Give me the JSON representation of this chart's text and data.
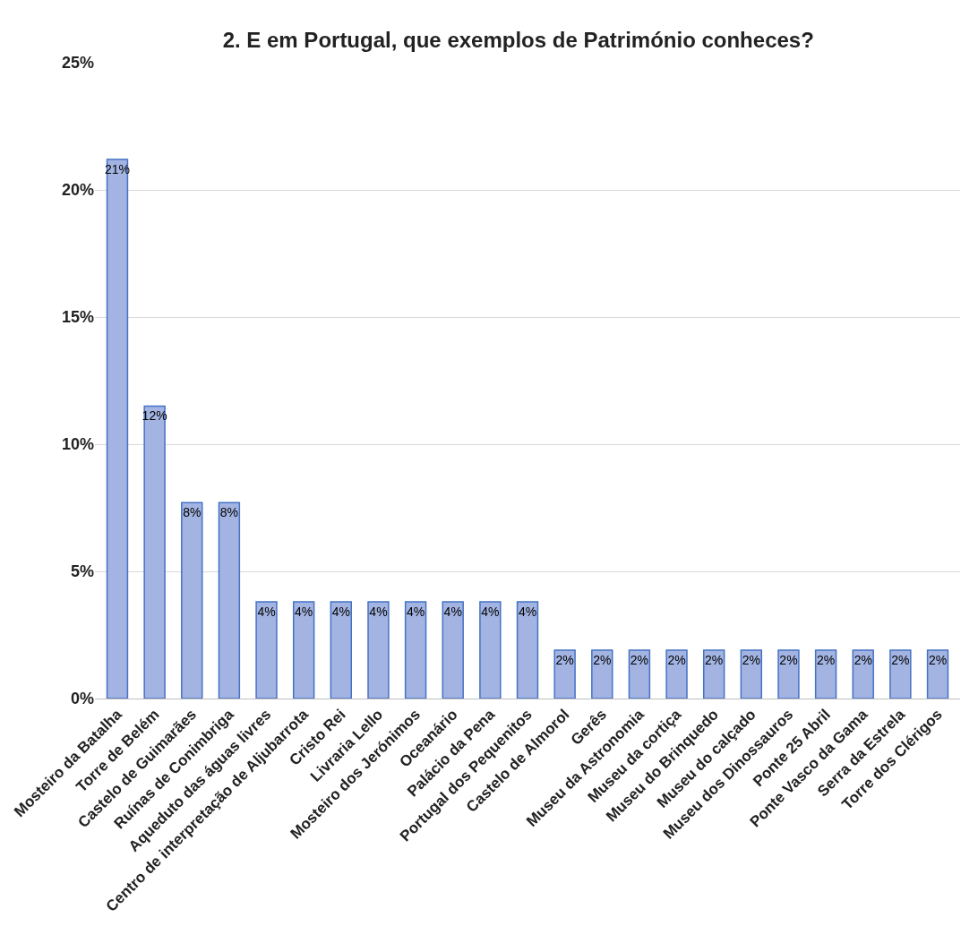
{
  "chart_data": {
    "type": "bar",
    "title": "2. E em Portugal, que exemplos de Património conheces?",
    "categories": [
      "Mosteiro da Batalha",
      "Torre de Belém",
      "Castelo de Guimarães",
      "Ruínas de Conimbriga",
      "Aqueduto das águas livres",
      "Centro de interpretação de Aljubarrota",
      "Cristo Rei",
      "Livraria Lello",
      "Mosteiro dos Jerónimos",
      "Oceanário",
      "Palácio da Pena",
      "Portugal dos Pequenitos",
      "Castelo de Almorol",
      "Gerês",
      "Museu da Astronomia",
      "Museu da cortiça",
      "Museu do Brinquedo",
      "Museu do calçado",
      "Museu dos Dinossauros",
      "Ponte 25 Abril",
      "Ponte Vasco da Gama",
      "Serra da Estrela",
      "Torre dos Clérigos"
    ],
    "values": [
      21.2,
      11.5,
      7.7,
      7.7,
      3.8,
      3.8,
      3.8,
      3.8,
      3.8,
      3.8,
      3.8,
      3.8,
      1.9,
      1.9,
      1.9,
      1.9,
      1.9,
      1.9,
      1.9,
      1.9,
      1.9,
      1.9,
      1.9
    ],
    "value_labels": [
      "21%",
      "12%",
      "8%",
      "8%",
      "4%",
      "4%",
      "4%",
      "4%",
      "4%",
      "4%",
      "4%",
      "4%",
      "2%",
      "2%",
      "2%",
      "2%",
      "2%",
      "2%",
      "2%",
      "2%",
      "2%",
      "2%",
      "2%"
    ],
    "color": "#a3b4e2",
    "ylim": [
      0,
      25
    ],
    "yticks": [
      {
        "value": 0,
        "label": "0%"
      },
      {
        "value": 5,
        "label": "5%"
      },
      {
        "value": 10,
        "label": "10%"
      },
      {
        "value": 15,
        "label": "15%"
      },
      {
        "value": 20,
        "label": "20%"
      },
      {
        "value": 25,
        "label": "25%"
      }
    ],
    "grid": "y",
    "legend": false
  }
}
